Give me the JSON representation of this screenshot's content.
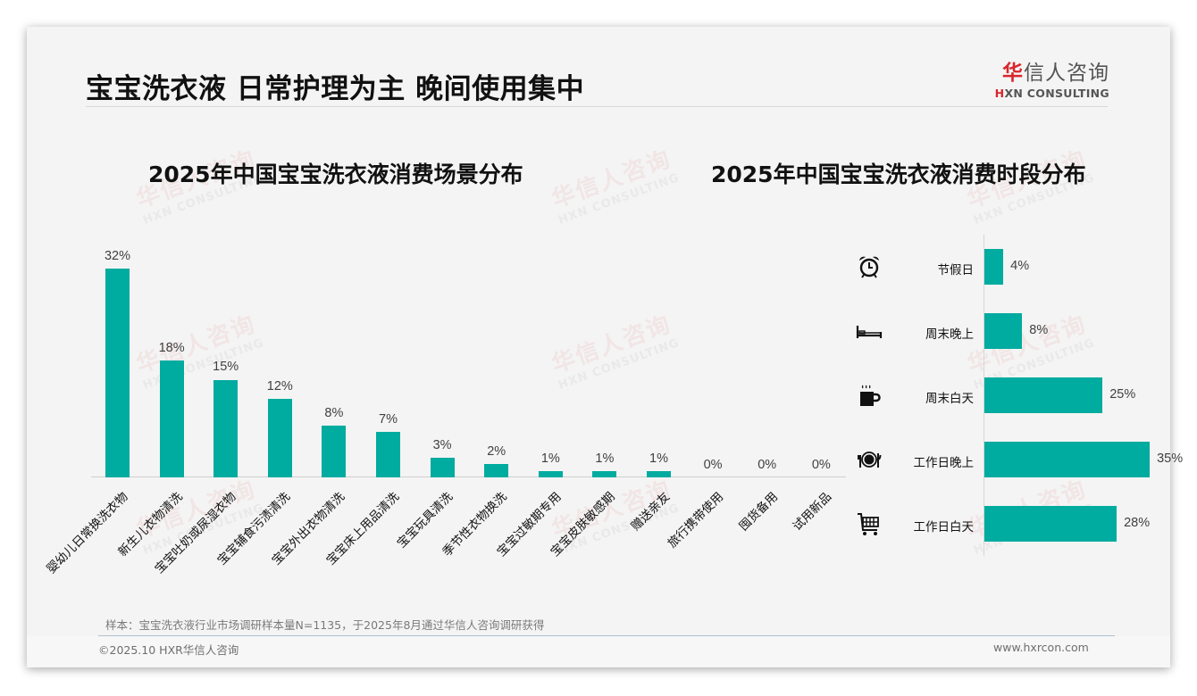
{
  "page": {
    "title": "宝宝洗衣液 日常护理为主 晚间使用集中",
    "logo": {
      "cn_accent": "华",
      "cn_rest": "信人咨询",
      "en_accent": "H",
      "en_rest": "XN CONSULTING"
    },
    "watermark": {
      "cn": "华信人咨询",
      "en": "HXN CONSULTING"
    },
    "note": "样本：宝宝洗衣液行业市场调研样本量N=1135，于2025年8月通过华信人咨询调研获得",
    "footer": {
      "left": "©2025.10 HXR华信人咨询",
      "right": "www.hxrcon.com"
    },
    "colors": {
      "bar": "#00ab9f",
      "brand_red": "#d9262c"
    }
  },
  "chart_data": [
    {
      "type": "bar",
      "title": "2025年中国宝宝洗衣液消费场景分布",
      "categories": [
        "婴幼儿日常换洗衣物",
        "新生儿衣物清洗",
        "宝宝吐奶或尿湿衣物",
        "宝宝辅食污渍清洗",
        "宝宝外出衣物清洗",
        "宝宝床上用品清洗",
        "宝宝玩具清洗",
        "季节性衣物换洗",
        "宝宝过敏期专用",
        "宝宝皮肤敏感期",
        "赠送亲友",
        "旅行携带使用",
        "囤货备用",
        "试用新品"
      ],
      "values": [
        32,
        18,
        15,
        12,
        8,
        7,
        3,
        2,
        1,
        1,
        1,
        0,
        0,
        0
      ],
      "labels": [
        "32%",
        "18%",
        "15%",
        "12%",
        "8%",
        "7%",
        "3%",
        "2%",
        "1%",
        "1%",
        "1%",
        "0%",
        "0%",
        "0%"
      ],
      "xlabel": "",
      "ylabel": "",
      "ylim": [
        0,
        35
      ],
      "grid": false,
      "legend": "none",
      "unit": "%"
    },
    {
      "type": "bar",
      "orientation": "horizontal",
      "title": "2025年中国宝宝洗衣液消费时段分布",
      "categories": [
        "节假日",
        "周末晚上",
        "周末白天",
        "工作日晚上",
        "工作日白天"
      ],
      "values": [
        4,
        8,
        25,
        35,
        28
      ],
      "labels": [
        "4%",
        "8%",
        "25%",
        "35%",
        "28%"
      ],
      "icons": [
        "alarm-clock-icon",
        "bed-icon",
        "coffee-mug-icon",
        "plate-cutlery-icon",
        "shopping-cart-icon"
      ],
      "xlabel": "",
      "ylabel": "",
      "xlim": [
        0,
        40
      ],
      "grid": false,
      "legend": "none",
      "unit": "%"
    }
  ]
}
